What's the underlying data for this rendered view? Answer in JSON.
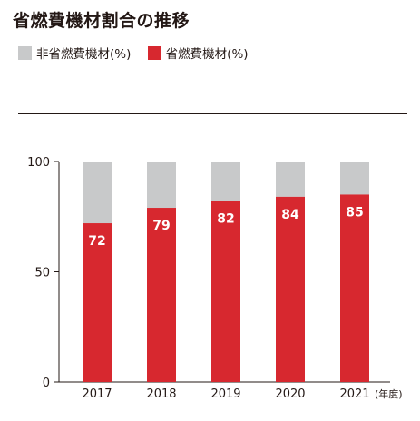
{
  "title": "省燃費機材割合の推移",
  "legend": [
    {
      "label": "非省燃費機材(%)",
      "color": "#c8c9ca"
    },
    {
      "label": "省燃費機材(%)",
      "color": "#d7282f"
    }
  ],
  "chart_data": {
    "type": "bar",
    "stacked": true,
    "title": "省燃費機材割合の推移",
    "categories": [
      "2017",
      "2018",
      "2019",
      "2020",
      "2021"
    ],
    "x_unit": "(年度)",
    "series": [
      {
        "name": "省燃費機材(%)",
        "color": "#d7282f",
        "values": [
          72,
          79,
          82,
          84,
          85
        ]
      },
      {
        "name": "非省燃費機材(%)",
        "color": "#c8c9ca",
        "values": [
          28,
          21,
          18,
          16,
          15
        ]
      }
    ],
    "y_ticks": [
      0,
      50,
      100
    ],
    "ylim": [
      0,
      100
    ],
    "grid": false,
    "legend_position": "top-left"
  }
}
